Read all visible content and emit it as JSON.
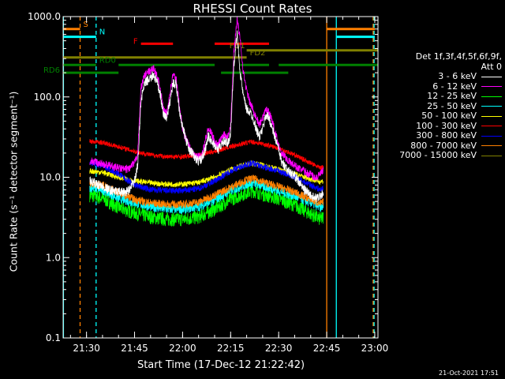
{
  "chart_data": {
    "type": "line",
    "title": "RHESSI Count Rates",
    "xlabel": "Start Time (17-Dec-12 21:22:42)",
    "ylabel": "Count Rate (s⁻¹ detector segment⁻¹)",
    "yscale": "log",
    "ylim": [
      0.1,
      1000
    ],
    "xlim_minutes": [
      22.7,
      121
    ],
    "x_ticks": [
      {
        "label": "21:30",
        "minute": 30
      },
      {
        "label": "21:45",
        "minute": 45
      },
      {
        "label": "22:00",
        "minute": 60
      },
      {
        "label": "22:15",
        "minute": 75
      },
      {
        "label": "22:30",
        "minute": 90
      },
      {
        "label": "22:45",
        "minute": 105
      },
      {
        "label": "23:00",
        "minute": 120
      }
    ],
    "y_ticks": [
      {
        "label": "0.1",
        "value": 0.1
      },
      {
        "label": "1.0",
        "value": 1
      },
      {
        "label": "10.0",
        "value": 10
      },
      {
        "label": "100.0",
        "value": 100
      },
      {
        "label": "1000.0",
        "value": 1000
      }
    ],
    "grid": false,
    "legend_placement": "right",
    "legend_header": [
      "Det 1f,3f,4f,5f,6f,9f,",
      "Att 0"
    ],
    "series": [
      {
        "name": "3 - 6 keV",
        "color": "#ffffff",
        "x": [
          31,
          34,
          37,
          40,
          42,
          43.5,
          45,
          46,
          47,
          48,
          49,
          50,
          51,
          52,
          53,
          54,
          55,
          56,
          57,
          58,
          59,
          60,
          61,
          62,
          63,
          64,
          65,
          66,
          67,
          68,
          69,
          70,
          71,
          72,
          73,
          74,
          75,
          76,
          77,
          78,
          79,
          80,
          81,
          82,
          83,
          84,
          85,
          86,
          87,
          88,
          89,
          90,
          91,
          92,
          93,
          94,
          95,
          96,
          97,
          98,
          99,
          100,
          101,
          102,
          103,
          104
        ],
        "y": [
          9,
          8,
          7,
          6.5,
          6.5,
          7,
          9,
          14,
          90,
          140,
          160,
          170,
          190,
          150,
          110,
          60,
          55,
          85,
          150,
          140,
          70,
          42,
          30,
          22,
          20,
          17,
          16,
          17,
          22,
          32,
          28,
          25,
          22,
          25,
          28,
          26,
          35,
          250,
          600,
          200,
          100,
          70,
          65,
          55,
          40,
          32,
          40,
          60,
          55,
          40,
          30,
          22,
          15,
          14,
          12,
          11,
          10.5,
          9,
          8,
          7,
          6.5,
          6,
          5.5,
          5.5,
          6,
          6.5
        ]
      },
      {
        "name": "6 - 12 keV",
        "color": "#ff00ff",
        "x": [
          31,
          34,
          37,
          40,
          42,
          43.5,
          45,
          46,
          47,
          48,
          49,
          50,
          51,
          52,
          53,
          54,
          55,
          56,
          57,
          58,
          59,
          60,
          61,
          62,
          63,
          64,
          65,
          66,
          67,
          68,
          69,
          70,
          71,
          72,
          73,
          74,
          75,
          76,
          77,
          78,
          79,
          80,
          81,
          82,
          83,
          84,
          85,
          86,
          87,
          88,
          89,
          90,
          91,
          92,
          93,
          94,
          95,
          96,
          97,
          98,
          99,
          100,
          101,
          102,
          103,
          104
        ],
        "y": [
          16,
          15,
          14,
          13,
          12.5,
          13,
          15,
          20,
          130,
          180,
          200,
          210,
          230,
          180,
          130,
          70,
          60,
          110,
          190,
          170,
          80,
          40,
          30,
          25,
          20,
          18,
          18,
          19,
          28,
          40,
          35,
          28,
          25,
          30,
          35,
          32,
          45,
          350,
          950,
          500,
          200,
          120,
          85,
          70,
          55,
          45,
          55,
          70,
          65,
          50,
          35,
          25,
          20,
          18,
          16,
          15,
          14,
          13,
          12.5,
          12,
          11,
          11,
          10,
          10,
          11,
          12
        ]
      },
      {
        "name": "12 - 25 keV",
        "color": "#00ff00",
        "x": [
          31,
          35,
          40,
          45,
          50,
          55,
          60,
          65,
          70,
          75,
          80,
          82,
          85,
          90,
          95,
          100,
          103,
          104
        ],
        "y": [
          6,
          5.5,
          4.2,
          3.6,
          3.2,
          3.0,
          3.0,
          3.2,
          4.0,
          5.3,
          6.5,
          6.8,
          6.2,
          5.4,
          4.5,
          3.5,
          3.0,
          3.2
        ]
      },
      {
        "name": "25 - 50 keV",
        "color": "#00ffff",
        "x": [
          31,
          35,
          40,
          45,
          50,
          55,
          60,
          65,
          70,
          75,
          80,
          82,
          85,
          90,
          95,
          100,
          103,
          104
        ],
        "y": [
          7.5,
          7,
          5.5,
          4.8,
          4.3,
          4.0,
          4.0,
          4.3,
          5.2,
          6.8,
          8.2,
          8.5,
          7.8,
          6.8,
          5.8,
          4.8,
          4.2,
          4.4
        ]
      },
      {
        "name": "50 - 100 keV",
        "color": "#ffff00",
        "x": [
          31,
          35,
          40,
          45,
          50,
          55,
          60,
          65,
          70,
          75,
          80,
          82,
          85,
          90,
          95,
          100,
          103,
          104
        ],
        "y": [
          12,
          11.5,
          10,
          9,
          8.5,
          8.2,
          8.2,
          8.6,
          10,
          12.5,
          14.5,
          15,
          14,
          12.5,
          11,
          9.5,
          8.8,
          9
        ]
      },
      {
        "name": "100 - 300 keV",
        "color": "#ff0000",
        "x": [
          31,
          35,
          40,
          45,
          50,
          55,
          60,
          65,
          70,
          75,
          80,
          82,
          85,
          90,
          95,
          100,
          103,
          104
        ],
        "y": [
          28,
          27,
          24,
          21,
          19,
          18,
          18,
          19,
          21,
          24,
          27,
          27.5,
          26,
          23,
          19,
          15,
          13,
          13.5
        ]
      },
      {
        "name": "300 - 800 keV",
        "color": "#0000ff",
        "x": [
          31,
          35,
          40,
          45,
          50,
          55,
          60,
          65,
          70,
          75,
          80,
          82,
          85,
          90,
          95,
          100,
          103,
          104
        ],
        "y": [
          15,
          14,
          11,
          8,
          7,
          6.8,
          6.8,
          7.2,
          9,
          12,
          14.5,
          15,
          13.5,
          12,
          10,
          8,
          7,
          7.5
        ]
      },
      {
        "name": "800 - 7000 keV",
        "color": "#ff8000",
        "x": [
          31,
          35,
          40,
          45,
          50,
          55,
          60,
          65,
          70,
          75,
          80,
          82,
          85,
          90,
          95,
          100,
          103,
          104
        ],
        "y": [
          8.5,
          8,
          6.5,
          5.3,
          4.8,
          4.6,
          4.6,
          4.9,
          6,
          7.5,
          9.3,
          9.6,
          8.8,
          7.6,
          6.5,
          5.3,
          4.7,
          4.9
        ]
      },
      {
        "name": "7000 - 15000 keV",
        "color": "#808000",
        "x": [],
        "y": []
      }
    ],
    "flag_bars": [
      {
        "label": "S",
        "color": "#ff8000",
        "x0": 22.7,
        "x1": 28,
        "y": 700,
        "label_pos": "right"
      },
      {
        "label": "S",
        "color": "#ff8000",
        "x0": 105,
        "x1": 120,
        "y": 700,
        "label_pos": "none"
      },
      {
        "label": "N",
        "color": "#00ffff",
        "x0": 22.7,
        "x1": 33,
        "y": 560,
        "label_pos": "right"
      },
      {
        "label": "N",
        "color": "#00ffff",
        "x0": 108,
        "x1": 120,
        "y": 560,
        "label_pos": "none"
      },
      {
        "label": "F",
        "color": "#ff0000",
        "x0": 47,
        "x1": 57,
        "y": 460,
        "label_pos": "left"
      },
      {
        "label": "F",
        "color": "#ff0000",
        "x0": 70,
        "x1": 87,
        "y": 460,
        "label_pos": "none"
      },
      {
        "label": "FD1",
        "color": "#808000",
        "x0": 80,
        "x1": 121,
        "y": 380,
        "label_pos": "before"
      },
      {
        "label": "FD2",
        "color": "#808000",
        "x0": 22.7,
        "x1": 80,
        "y": 310,
        "label_pos": "after"
      },
      {
        "label": "RD0",
        "color": "#008000",
        "x0": 22.7,
        "x1": 33,
        "y": 250,
        "label_pos": "after"
      },
      {
        "label": "RD0",
        "color": "#008000",
        "x0": 40,
        "x1": 70,
        "y": 250,
        "label_pos": "none"
      },
      {
        "label": "RD0",
        "color": "#008000",
        "x0": 78,
        "x1": 87,
        "y": 250,
        "label_pos": "none"
      },
      {
        "label": "RD0",
        "color": "#008000",
        "x0": 90,
        "x1": 121,
        "y": 250,
        "label_pos": "none"
      },
      {
        "label": "RD6",
        "color": "#008000",
        "x0": 22.7,
        "x1": 40,
        "y": 200,
        "label_pos": "left"
      },
      {
        "label": "RD6",
        "color": "#008000",
        "x0": 72,
        "x1": 93,
        "y": 200,
        "label_pos": "none"
      }
    ],
    "markers": [
      {
        "x": 22.8,
        "color": "#00ffff",
        "style": "solid"
      },
      {
        "x": 28,
        "color": "#ff8000",
        "style": "dashed"
      },
      {
        "x": 33,
        "color": "#00ffff",
        "style": "dashed"
      },
      {
        "x": 105,
        "color": "#ff8000",
        "style": "solid"
      },
      {
        "x": 108,
        "color": "#00ffff",
        "style": "solid"
      },
      {
        "x": 119.5,
        "color": "#ff8000",
        "style": "dashed"
      },
      {
        "x": 119.8,
        "color": "#00ffff",
        "style": "dashed"
      }
    ]
  },
  "timestamp": "21-Oct-2021 17:51"
}
